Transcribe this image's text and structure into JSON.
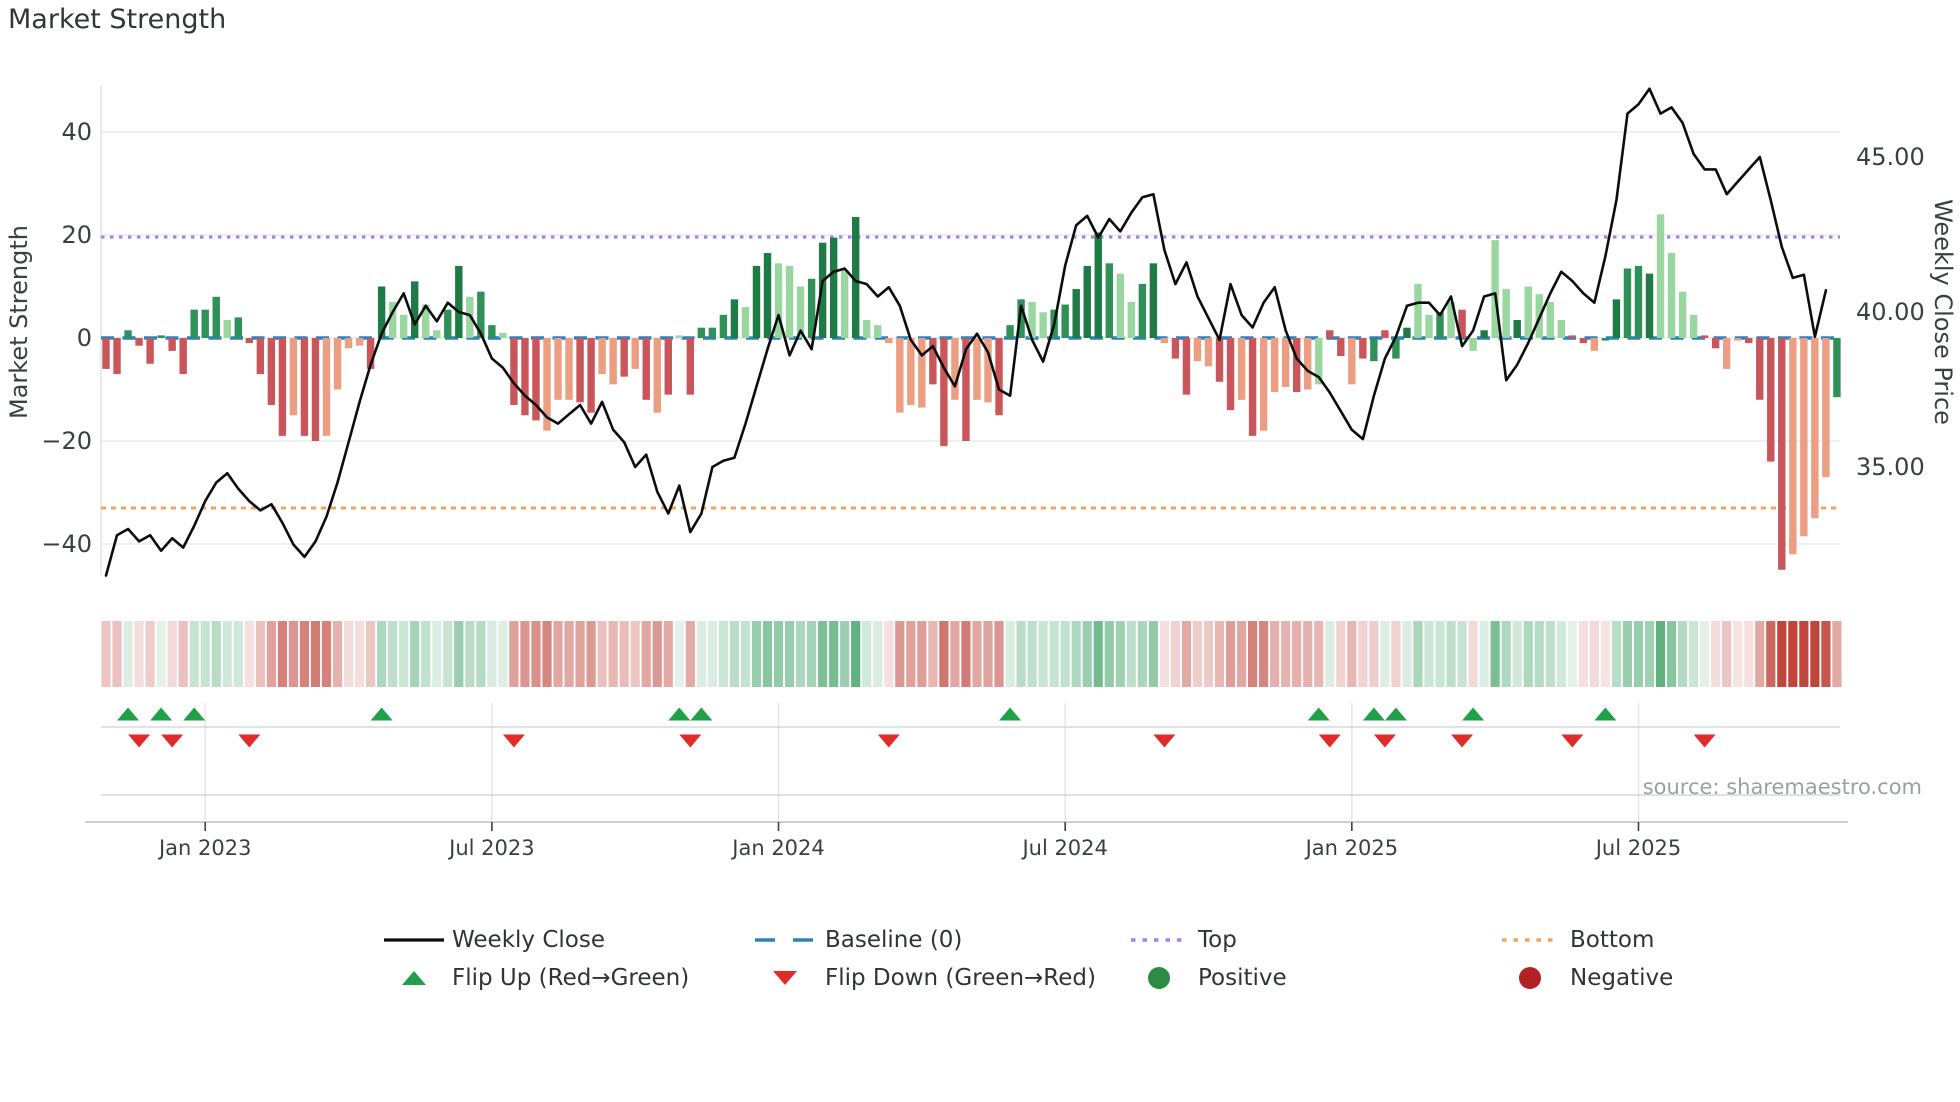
{
  "title": "Market Strength",
  "source": "source: sharemaestro.com",
  "axes": {
    "left": {
      "label": "Market Strength",
      "ticks": [
        {
          "v": 40,
          "label": "40"
        },
        {
          "v": 20,
          "label": "20"
        },
        {
          "v": 0,
          "label": "0"
        },
        {
          "v": -20,
          "label": "−20"
        },
        {
          "v": -40,
          "label": "−40"
        }
      ]
    },
    "right": {
      "label": "Weekly Close Price",
      "ticks": [
        {
          "v": 45,
          "label": "45.00"
        },
        {
          "v": 40,
          "label": "40.00"
        },
        {
          "v": 35,
          "label": "35.00"
        }
      ]
    },
    "x": {
      "ticks": [
        {
          "week": 9,
          "label": "Jan 2023"
        },
        {
          "week": 35,
          "label": "Jul 2023"
        },
        {
          "week": 61,
          "label": "Jan 2024"
        },
        {
          "week": 87,
          "label": "Jul 2024"
        },
        {
          "week": 113,
          "label": "Jan 2025"
        },
        {
          "week": 139,
          "label": "Jul 2025"
        }
      ]
    }
  },
  "chart_data": {
    "type": "combo (weekly bars + dual-axis line + heatmap strip + flip markers)",
    "x_unit": "week",
    "start_week": "2022-10-30",
    "n_weeks": 157,
    "baseline": 0,
    "top_threshold": 19.6,
    "bottom_threshold": -33,
    "left_axis_range": [
      -50,
      48
    ],
    "right_axis_ticks": [
      35,
      40,
      45
    ],
    "grid": "horizontal only",
    "strength_bars": {
      "name": "Market Strength",
      "values": [
        -6,
        -7,
        1.5,
        -1.5,
        -5,
        0.5,
        -2.5,
        -7,
        5.5,
        5.5,
        8,
        3.5,
        4,
        -1,
        -7,
        -13,
        -19,
        -15,
        -19,
        -20,
        -19,
        -10,
        -2,
        -1.5,
        -6,
        10,
        7,
        4.5,
        11,
        6.5,
        1.5,
        5.5,
        14,
        8,
        9,
        2.5,
        1,
        -13,
        -15,
        -16,
        -18,
        -12,
        -12,
        -12.5,
        -14.5,
        -7,
        -9,
        -7.5,
        -6,
        -12,
        -14.5,
        -11,
        0.5,
        -11,
        2,
        2,
        4.5,
        7.5,
        6,
        14,
        16.5,
        14.5,
        14,
        10,
        11.5,
        18.5,
        19.5,
        13,
        23.5,
        3.5,
        2.5,
        -1,
        -14.5,
        -13,
        -13.5,
        -9,
        -21,
        -12,
        -20,
        -12,
        -12.5,
        -15,
        2.5,
        7.5,
        7,
        5,
        5.5,
        6.5,
        9.5,
        14,
        20.5,
        14.5,
        12.5,
        7,
        10.5,
        14.5,
        -1,
        -4,
        -11,
        -4.5,
        -5.5,
        -8.5,
        -14,
        -12,
        -19,
        -18,
        -10.5,
        -9.5,
        -10.5,
        -10,
        -9,
        1.5,
        -3.5,
        -9,
        -4,
        -4.5,
        1.5,
        -4,
        2,
        10.5,
        4.5,
        5,
        7,
        5.5,
        -2.5,
        1.5,
        19,
        9.5,
        3.5,
        10,
        8.5,
        7,
        3.5,
        0.5,
        -1,
        -2.5,
        -0.5,
        7.5,
        13.5,
        14,
        12.5,
        24,
        16.5,
        9,
        4.5,
        0.5,
        -2,
        -6,
        -0.5,
        -1,
        -12,
        -24,
        -45,
        -42,
        -38.5,
        -35,
        -27,
        -11.5
      ],
      "shades": [
        "r2",
        "r2",
        "g2",
        "r2",
        "r2",
        "g2",
        "r2",
        "r2",
        "g2",
        "g2",
        "g2",
        "g1",
        "g2",
        "r2",
        "r2",
        "r2",
        "r2",
        "r1",
        "r2",
        "r2",
        "r1",
        "r1",
        "r1",
        "r1",
        "r2",
        "g3",
        "g1",
        "g1",
        "g3",
        "g1",
        "g1",
        "g2",
        "g3",
        "g1",
        "g2",
        "g2",
        "g1",
        "r2",
        "r2",
        "r2",
        "r1",
        "r1",
        "r1",
        "r2",
        "r2",
        "r1",
        "r1",
        "r2",
        "r1",
        "r2",
        "r1",
        "r2",
        "g1",
        "r2",
        "g2",
        "g2",
        "g2",
        "g3",
        "g1",
        "g3",
        "g3",
        "g1",
        "g1",
        "g1",
        "g2",
        "g3",
        "g3",
        "g1",
        "g3",
        "g1",
        "g1",
        "r1",
        "r1",
        "r1",
        "r1",
        "r2",
        "r2",
        "r1",
        "r2",
        "r1",
        "r1",
        "r2",
        "g2",
        "g2",
        "g1",
        "g1",
        "g2",
        "g2",
        "g3",
        "g3",
        "g3",
        "g2",
        "g1",
        "g1",
        "g2",
        "g3",
        "r1",
        "r2",
        "r2",
        "r1",
        "r1",
        "r2",
        "r2",
        "r1",
        "r2",
        "r1",
        "r1",
        "r1",
        "r2",
        "r1",
        "g1",
        "r2",
        "r2",
        "r1",
        "r2",
        "g2",
        "r2",
        "g2",
        "g3",
        "g1",
        "g1",
        "g2",
        "g1",
        "r2",
        "g1",
        "g3",
        "g1",
        "g1",
        "g3",
        "g1",
        "g1",
        "g1",
        "g1",
        "r2",
        "r2",
        "r1",
        "g2",
        "g3",
        "g2",
        "g2",
        "g3",
        "g1",
        "g1",
        "g1",
        "g1",
        "r2",
        "r2",
        "r1",
        "r1",
        "r2",
        "r2",
        "r2",
        "r2",
        "r1",
        "r1",
        "r1",
        "r1"
      ]
    },
    "weekly_close_line": {
      "name": "Weekly Close",
      "values": [
        31.5,
        32.8,
        33.0,
        32.6,
        32.8,
        32.3,
        32.7,
        32.4,
        33.1,
        33.9,
        34.5,
        34.8,
        34.3,
        33.9,
        33.6,
        33.8,
        33.2,
        32.5,
        32.1,
        32.6,
        33.4,
        34.5,
        35.8,
        37.1,
        38.3,
        39.3,
        40.0,
        40.6,
        39.6,
        40.2,
        39.7,
        40.3,
        40.0,
        39.9,
        39.3,
        38.5,
        38.2,
        37.7,
        37.3,
        37.0,
        36.6,
        36.4,
        36.7,
        37.0,
        36.4,
        37.1,
        36.2,
        35.8,
        35.0,
        35.4,
        34.2,
        33.5,
        34.4,
        32.9,
        33.5,
        35.0,
        35.2,
        35.3,
        36.4,
        37.6,
        38.8,
        39.9,
        38.6,
        39.4,
        38.8,
        41.0,
        41.3,
        41.4,
        41.0,
        40.9,
        40.5,
        40.8,
        40.2,
        39.1,
        38.6,
        38.9,
        38.2,
        37.6,
        38.8,
        39.3,
        38.7,
        37.5,
        37.3,
        40.2,
        39.1,
        38.4,
        39.6,
        41.5,
        42.8,
        43.1,
        42.4,
        43.0,
        42.6,
        43.2,
        43.7,
        43.8,
        42.0,
        40.9,
        41.6,
        40.5,
        39.8,
        39.1,
        40.9,
        39.9,
        39.5,
        40.3,
        40.8,
        39.4,
        38.5,
        38.1,
        37.9,
        37.4,
        36.8,
        36.2,
        35.9,
        37.3,
        38.5,
        39.2,
        40.2,
        40.3,
        40.3,
        39.9,
        40.5,
        38.9,
        39.4,
        40.5,
        40.6,
        37.8,
        38.3,
        39.0,
        39.8,
        40.6,
        41.3,
        41.0,
        40.6,
        40.3,
        41.8,
        43.6,
        46.4,
        46.7,
        47.2,
        46.4,
        46.6,
        46.1,
        45.1,
        44.6,
        44.6,
        43.8,
        44.2,
        44.6,
        45.0,
        43.6,
        42.1,
        41.1,
        41.2,
        39.2,
        40.7
      ]
    },
    "heatmap_strip": "one cell per week, red→white→green colormap of strength value",
    "flip_up_weeks": [
      2,
      5,
      8,
      25,
      52,
      54,
      82,
      110,
      115,
      117,
      124,
      136
    ],
    "flip_down_weeks": [
      3,
      6,
      13,
      37,
      53,
      71,
      96,
      111,
      116,
      123,
      133,
      145
    ]
  },
  "legend": {
    "items": [
      {
        "icon": "line-black",
        "label": "Weekly Close",
        "row": 0,
        "col": 0
      },
      {
        "icon": "dash-blue",
        "label": "Baseline (0)",
        "row": 0,
        "col": 1
      },
      {
        "icon": "dot-purple",
        "label": "Top",
        "row": 0,
        "col": 2
      },
      {
        "icon": "dot-orange",
        "label": "Bottom",
        "row": 0,
        "col": 3
      },
      {
        "icon": "tri-up",
        "label": "Flip Up (Red→Green)",
        "row": 1,
        "col": 0
      },
      {
        "icon": "tri-down",
        "label": "Flip Down (Green→Red)",
        "row": 1,
        "col": 1
      },
      {
        "icon": "circle-green",
        "label": "Positive",
        "row": 1,
        "col": 2
      },
      {
        "icon": "circle-red",
        "label": "Negative",
        "row": 1,
        "col": 3
      }
    ]
  },
  "colors": {
    "bar_green_dark": "#1e7b45",
    "bar_green": "#2f9058",
    "bar_green_light": "#9ad6a0",
    "bar_red": "#c9565a",
    "bar_salmon": "#eb9e82",
    "line": "#0d0d0d",
    "baseline": "#2e80c0",
    "top": "#a67ef2",
    "bottom": "#f2a45f",
    "flip_up": "#21a04a",
    "flip_down": "#e02b2b",
    "legend_positive": "#2c8c44",
    "legend_negative": "#b22222",
    "strip_positive_base": "#279653",
    "strip_negative_base": "#b93228",
    "grid": "#ebebee",
    "axis_text": "#3a3f44",
    "title_text": "#31363b",
    "source_text": "#9aa0a6"
  }
}
